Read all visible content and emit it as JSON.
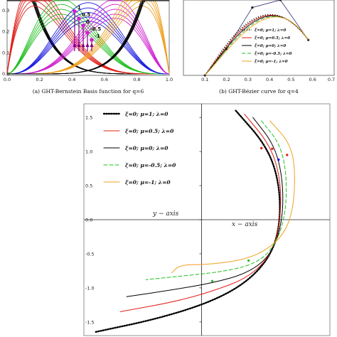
{
  "captions": {
    "a": "(a) GHT-Bernstein Basis function for q=6",
    "b": "(b) GHT-Bézier curve for q=4"
  },
  "colors": {
    "black": "#000000",
    "red": "#e0201a",
    "green": "#22c022",
    "blue": "#1a1ae0",
    "orange": "#f0a020",
    "magenta": "#d020d0",
    "purple": "#800080"
  },
  "chart_data": [
    {
      "id": "a",
      "type": "line",
      "xlim": [
        0,
        1
      ],
      "ylim": [
        0,
        0.35
      ],
      "xticks": [
        "0.0",
        "0.2",
        "0.4",
        "0.6",
        "0.8",
        "1.0"
      ],
      "yticks": [
        "0.0",
        "0.1",
        "0.2",
        "0.3"
      ],
      "degree": 6,
      "colors_by_function": [
        "black",
        "red",
        "green",
        "blue",
        "magenta",
        "orange",
        "black"
      ],
      "parameter_labels": [
        "1",
        "0.5",
        "0",
        "-0.5",
        "-1"
      ],
      "parameter_values": [
        1,
        0.5,
        0,
        -0.5,
        -1
      ]
    },
    {
      "id": "b",
      "type": "line",
      "xlim": [
        0,
        0.7
      ],
      "ylim": [
        0,
        1
      ],
      "xticks": [
        "0.1",
        "0.2",
        "0.3",
        "0.4",
        "0.5",
        "0.6",
        "0.7"
      ],
      "control_polygon": [
        [
          0.1,
          0.0
        ],
        [
          0.2,
          0.35
        ],
        [
          0.32,
          0.9
        ],
        [
          0.45,
          1.0
        ],
        [
          0.58,
          0.47
        ]
      ],
      "legend": [
        {
          "label": "ξ=0; μ=1; λ=0",
          "color": "black",
          "style": "dotted"
        },
        {
          "label": "ξ=0; μ=0.5; λ=0",
          "color": "red",
          "style": "solid"
        },
        {
          "label": "ξ=0; μ=0; λ=0",
          "color": "black",
          "style": "solid"
        },
        {
          "label": "ξ=0; μ=-0.5; λ=0",
          "color": "green",
          "style": "dashed"
        },
        {
          "label": "ξ=0; μ=-1; λ=0",
          "color": "orange",
          "style": "solid"
        }
      ]
    },
    {
      "id": "c",
      "type": "line",
      "xlabel": "x − axis",
      "ylabel": "y − axis",
      "xlim": [
        -0.55,
        0.6
      ],
      "ylim": [
        -1.7,
        1.7
      ],
      "yticks": [
        "1.5",
        "1.0",
        "0.5",
        "0.0",
        "-0.5",
        "-1.0",
        "-1.5"
      ],
      "ytick_values": [
        1.5,
        1.0,
        0.5,
        0.0,
        -0.5,
        -1.0,
        -1.5
      ],
      "series": [
        {
          "label": "ξ=0; μ=1; λ=0",
          "color": "black",
          "style": "dotted",
          "x": [
            0.16,
            0.3,
            0.36,
            0.37,
            0.33,
            0.22,
            0.05,
            -0.2,
            -0.5
          ],
          "y": [
            1.6,
            1.1,
            0.6,
            0.0,
            -0.5,
            -0.9,
            -1.2,
            -1.45,
            -1.65
          ]
        },
        {
          "label": "ξ=0; μ=0.5; λ=0",
          "color": "red",
          "style": "solid",
          "x": [
            0.2,
            0.32,
            0.37,
            0.37,
            0.33,
            0.22,
            0.05,
            -0.12,
            -0.38
          ],
          "y": [
            1.55,
            1.1,
            0.6,
            0.0,
            -0.5,
            -0.85,
            -1.05,
            -1.2,
            -1.35
          ]
        },
        {
          "label": "ξ=0; μ=0; λ=0",
          "color": "black",
          "style": "solid",
          "x": [
            0.24,
            0.34,
            0.38,
            0.38,
            0.33,
            0.22,
            0.05,
            -0.14,
            -0.35
          ],
          "y": [
            1.5,
            1.1,
            0.6,
            0.0,
            -0.5,
            -0.78,
            -0.93,
            -1.03,
            -1.13
          ]
        },
        {
          "label": "ξ=0; μ=-0.5; λ=0",
          "color": "green",
          "style": "dashed",
          "x": [
            0.28,
            0.37,
            0.4,
            0.39,
            0.33,
            0.24,
            0.1,
            -0.04,
            -0.26
          ],
          "y": [
            1.45,
            1.1,
            0.6,
            0.0,
            -0.45,
            -0.66,
            -0.76,
            -0.81,
            -0.88
          ]
        },
        {
          "label": "ξ=0; μ=-1; λ=0",
          "color": "orange",
          "style": "solid",
          "x": [
            0.32,
            0.42,
            0.44,
            0.42,
            0.35,
            0.22,
            0.03,
            -0.1,
            -0.14
          ],
          "y": [
            1.45,
            1.1,
            0.6,
            0.0,
            -0.35,
            -0.58,
            -0.66,
            -0.66,
            -0.78
          ]
        }
      ],
      "legend": [
        {
          "label": "ξ=0; μ=1; λ=0",
          "color": "black",
          "style": "dotted"
        },
        {
          "label": "ξ=0; μ=0.5; λ=0",
          "color": "red",
          "style": "solid"
        },
        {
          "label": "ξ=0; μ=0; λ=0",
          "color": "black",
          "style": "solid"
        },
        {
          "label": "ξ=0; μ=-0.5; λ=0",
          "color": "green",
          "style": "dashed"
        },
        {
          "label": "ξ=0; μ=-1; λ=0",
          "color": "orange",
          "style": "solid"
        }
      ]
    }
  ]
}
